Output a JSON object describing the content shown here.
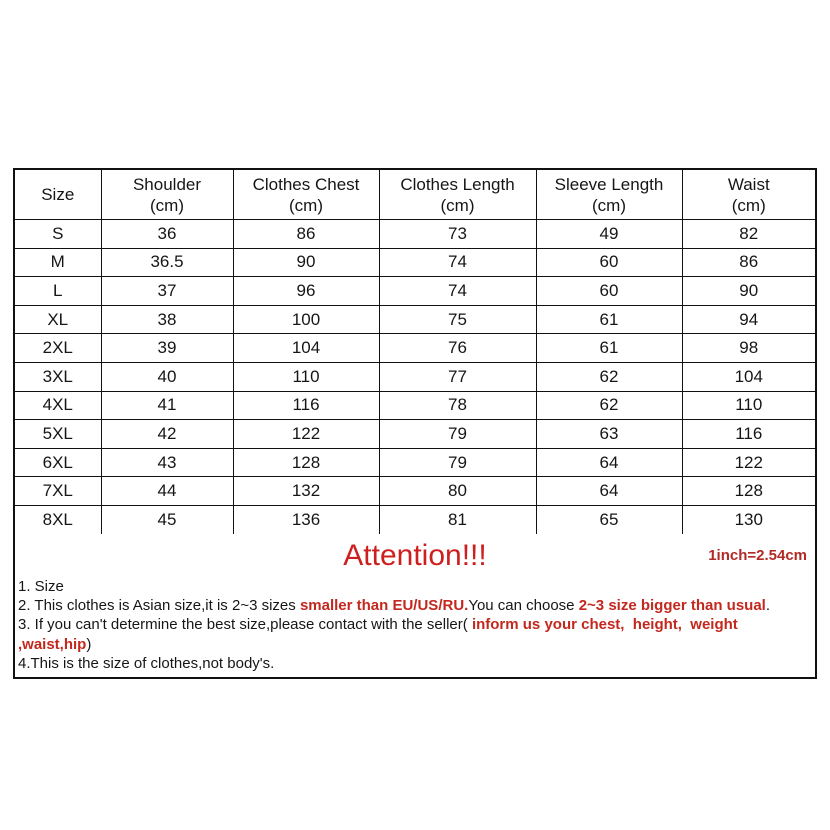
{
  "table": {
    "headers": [
      {
        "label": "Size",
        "unit": ""
      },
      {
        "label": "Shoulder",
        "unit": "(cm)"
      },
      {
        "label": "Clothes Chest",
        "unit": "(cm)"
      },
      {
        "label": "Clothes Length",
        "unit": "(cm)"
      },
      {
        "label": "Sleeve Length",
        "unit": "(cm)"
      },
      {
        "label": "Waist",
        "unit": "(cm)"
      }
    ],
    "rows": [
      [
        "S",
        "36",
        "86",
        "73",
        "49",
        "82"
      ],
      [
        "M",
        "36.5",
        "90",
        "74",
        "60",
        "86"
      ],
      [
        "L",
        "37",
        "96",
        "74",
        "60",
        "90"
      ],
      [
        "XL",
        "38",
        "100",
        "75",
        "61",
        "94"
      ],
      [
        "2XL",
        "39",
        "104",
        "76",
        "61",
        "98"
      ],
      [
        "3XL",
        "40",
        "110",
        "77",
        "62",
        "104"
      ],
      [
        "4XL",
        "41",
        "116",
        "78",
        "62",
        "110"
      ],
      [
        "5XL",
        "42",
        "122",
        "79",
        "63",
        "116"
      ],
      [
        "6XL",
        "43",
        "128",
        "79",
        "64",
        "122"
      ],
      [
        "7XL",
        "44",
        "132",
        "80",
        "64",
        "128"
      ],
      [
        "8XL",
        "45",
        "136",
        "81",
        "65",
        "130"
      ]
    ]
  },
  "attention": {
    "title": "Attention!!!",
    "conversion": "1inch=2.54cm"
  },
  "notes": [
    {
      "segments": [
        {
          "text": "1. Size",
          "bold_red": false
        }
      ]
    },
    {
      "segments": [
        {
          "text": "2. This clothes is Asian size,it is 2~3 sizes ",
          "bold_red": false
        },
        {
          "text": "smaller than EU/US/RU.",
          "bold_red": true
        },
        {
          "text": "You can choose ",
          "bold_red": false
        },
        {
          "text": "2~3 size bigger than usual",
          "bold_red": true
        },
        {
          "text": ".",
          "bold_red": false
        }
      ]
    },
    {
      "segments": [
        {
          "text": "3. If you can't determine the best size,please contact with the seller( ",
          "bold_red": false
        },
        {
          "text": "inform us your chest,  height,  weight ,waist,hip",
          "bold_red": true
        },
        {
          "text": ")",
          "bold_red": false
        }
      ]
    },
    {
      "segments": [
        {
          "text": "4.This is the size of clothes,not body's.",
          "bold_red": false
        }
      ]
    }
  ],
  "colors": {
    "red_title": "#cd1f1f",
    "red_bold": "#c3281e",
    "conversion_red": "#b22a25",
    "border_color": "#111111",
    "text_color": "#161616"
  }
}
